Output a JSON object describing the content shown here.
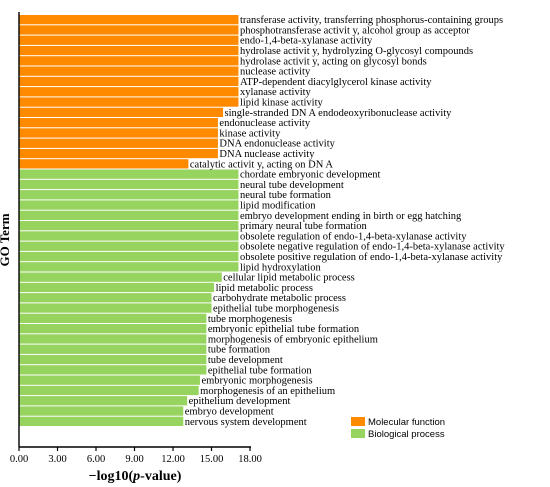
{
  "chart_data": {
    "type": "bar",
    "orientation": "horizontal",
    "xlabel": "−log10(p-value)",
    "ylabel": "GO Term",
    "xlim": [
      0,
      18
    ],
    "xticks": [
      "0.00",
      "3.00",
      "6.00",
      "9.00",
      "12.00",
      "15.00",
      "18.00"
    ],
    "legend": {
      "position": "bottom-right",
      "entries": [
        {
          "name": "Molecular function",
          "color": "#FF8A00"
        },
        {
          "name": "Biological process",
          "color": "#96D35F"
        }
      ]
    },
    "series": [
      {
        "name": "Molecular function",
        "color": "#FF8A00",
        "categories": [
          "transferase activity, transferring phosphorus-containing groups",
          "phosphotransferase activit y, alcohol group as acceptor",
          "endo-1,4-beta-xylanase activity",
          "hydrolase activit y, hydrolyzing O-glycosyl compounds",
          "hydrolase activit y, acting on glycosyl bonds",
          "nuclease activity",
          "ATP-dependent diacylglycerol kinase activity",
          "xylanase activity",
          "lipid kinase activity",
          "single-stranded DN A endodeoxyribonuclease activity",
          "endonuclease activity",
          "kinase activity",
          "DNA endonuclease activity",
          "DNA nuclease activity",
          "catalytic activit y, acting on DN A"
        ],
        "values": [
          17.1,
          17.1,
          17.1,
          17.1,
          17.1,
          17.1,
          17.1,
          17.1,
          17.1,
          15.9,
          15.5,
          15.5,
          15.5,
          15.5,
          13.2
        ]
      },
      {
        "name": "Biological process",
        "color": "#96D35F",
        "categories": [
          "chordate embryonic development",
          "neural tube development",
          "neural tube formation",
          "lipid modification",
          "embryo development ending in birth or egg hatching",
          "primary neural tube formation",
          "obsolete regulation of endo-1,4-beta-xylanase activity",
          "obsolete negative regulation of endo-1,4-beta-xylanase activity",
          "obsolete positive regulation of endo-1,4-beta-xylanase activity",
          "lipid hydroxylation",
          "cellular lipid metabolic process",
          "lipid metabolic process",
          "carbohydrate metabolic process",
          "epithelial tube morphogenesis",
          "tube morphogenesis",
          "embryonic epithelial tube formation",
          "morphogenesis of embryonic epithelium",
          "tube formation",
          "tube development",
          "epithelial tube formation",
          "embryonic morphogenesis",
          "morphogenesis of an epithelium",
          "epithelium development",
          "embryo development",
          "nervous system development"
        ],
        "values": [
          17.1,
          17.1,
          17.1,
          17.1,
          17.1,
          17.1,
          17.1,
          17.1,
          17.1,
          17.1,
          15.8,
          15.2,
          15.0,
          15.0,
          14.6,
          14.6,
          14.6,
          14.6,
          14.6,
          14.6,
          14.1,
          14.0,
          13.1,
          12.8,
          12.8
        ]
      }
    ]
  }
}
